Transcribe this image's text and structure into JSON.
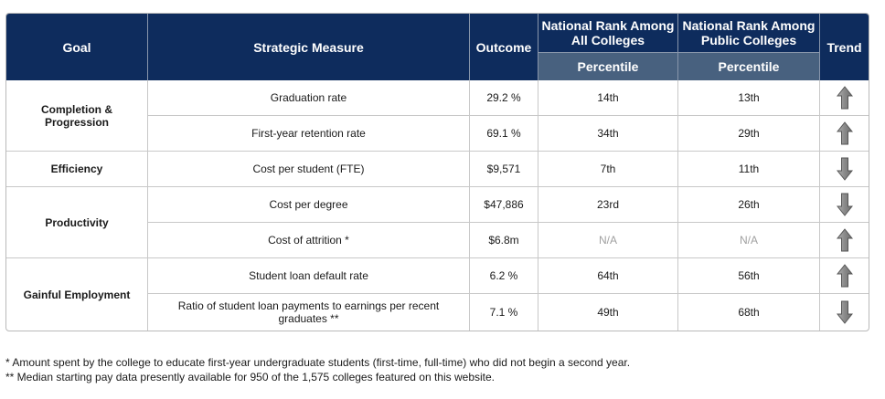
{
  "header": {
    "goal": "Goal",
    "measure": "Strategic Measure",
    "outcome": "Outcome",
    "rank_all_line1": "National Rank Among",
    "rank_all_line2": "All Colleges",
    "rank_public_line1": "National Rank Among",
    "rank_public_line2": "Public Colleges",
    "trend": "Trend",
    "percentile_all": "Percentile",
    "percentile_public": "Percentile"
  },
  "goals": {
    "completion_line1": "Completion &",
    "completion_line2": "Progression",
    "efficiency": "Efficiency",
    "productivity": "Productivity",
    "gainful": "Gainful Employment"
  },
  "rows": [
    {
      "measure": "Graduation rate",
      "outcome": "29.2 %",
      "rank_all": "14th",
      "rank_public": "13th",
      "trend": "up-arrow-icon"
    },
    {
      "measure": "First-year retention rate",
      "outcome": "69.1 %",
      "rank_all": "34th",
      "rank_public": "29th",
      "trend": "up-arrow-icon"
    },
    {
      "measure": "Cost per student (FTE)",
      "outcome": "$9,571",
      "rank_all": "7th",
      "rank_public": "11th",
      "trend": "down-arrow-icon"
    },
    {
      "measure": "Cost per degree",
      "outcome": "$47,886",
      "rank_all": "23rd",
      "rank_public": "26th",
      "trend": "down-arrow-icon"
    },
    {
      "measure": "Cost of attrition *",
      "outcome": "$6.8m",
      "rank_all": "N/A",
      "rank_public": "N/A",
      "trend": "up-arrow-icon"
    },
    {
      "measure": "Student loan default rate",
      "outcome": "6.2 %",
      "rank_all": "64th",
      "rank_public": "56th",
      "trend": "up-arrow-icon"
    },
    {
      "measure_line1": "Ratio of student loan payments to earnings per recent",
      "measure_line2": "graduates **",
      "outcome": "7.1 %",
      "rank_all": "49th",
      "rank_public": "68th",
      "trend": "down-arrow-icon"
    }
  ],
  "footnotes": {
    "note1": "* Amount spent by the college to educate first-year undergraduate students (first-time, full-time) who did not begin a second year.",
    "note2": "** Median starting pay data presently available for 950 of the 1,575 colleges featured on this website."
  },
  "colors": {
    "header_bg": "#0e2c5d",
    "subheader_bg": "#48617f",
    "arrow_fill": "#8a8a8a"
  }
}
